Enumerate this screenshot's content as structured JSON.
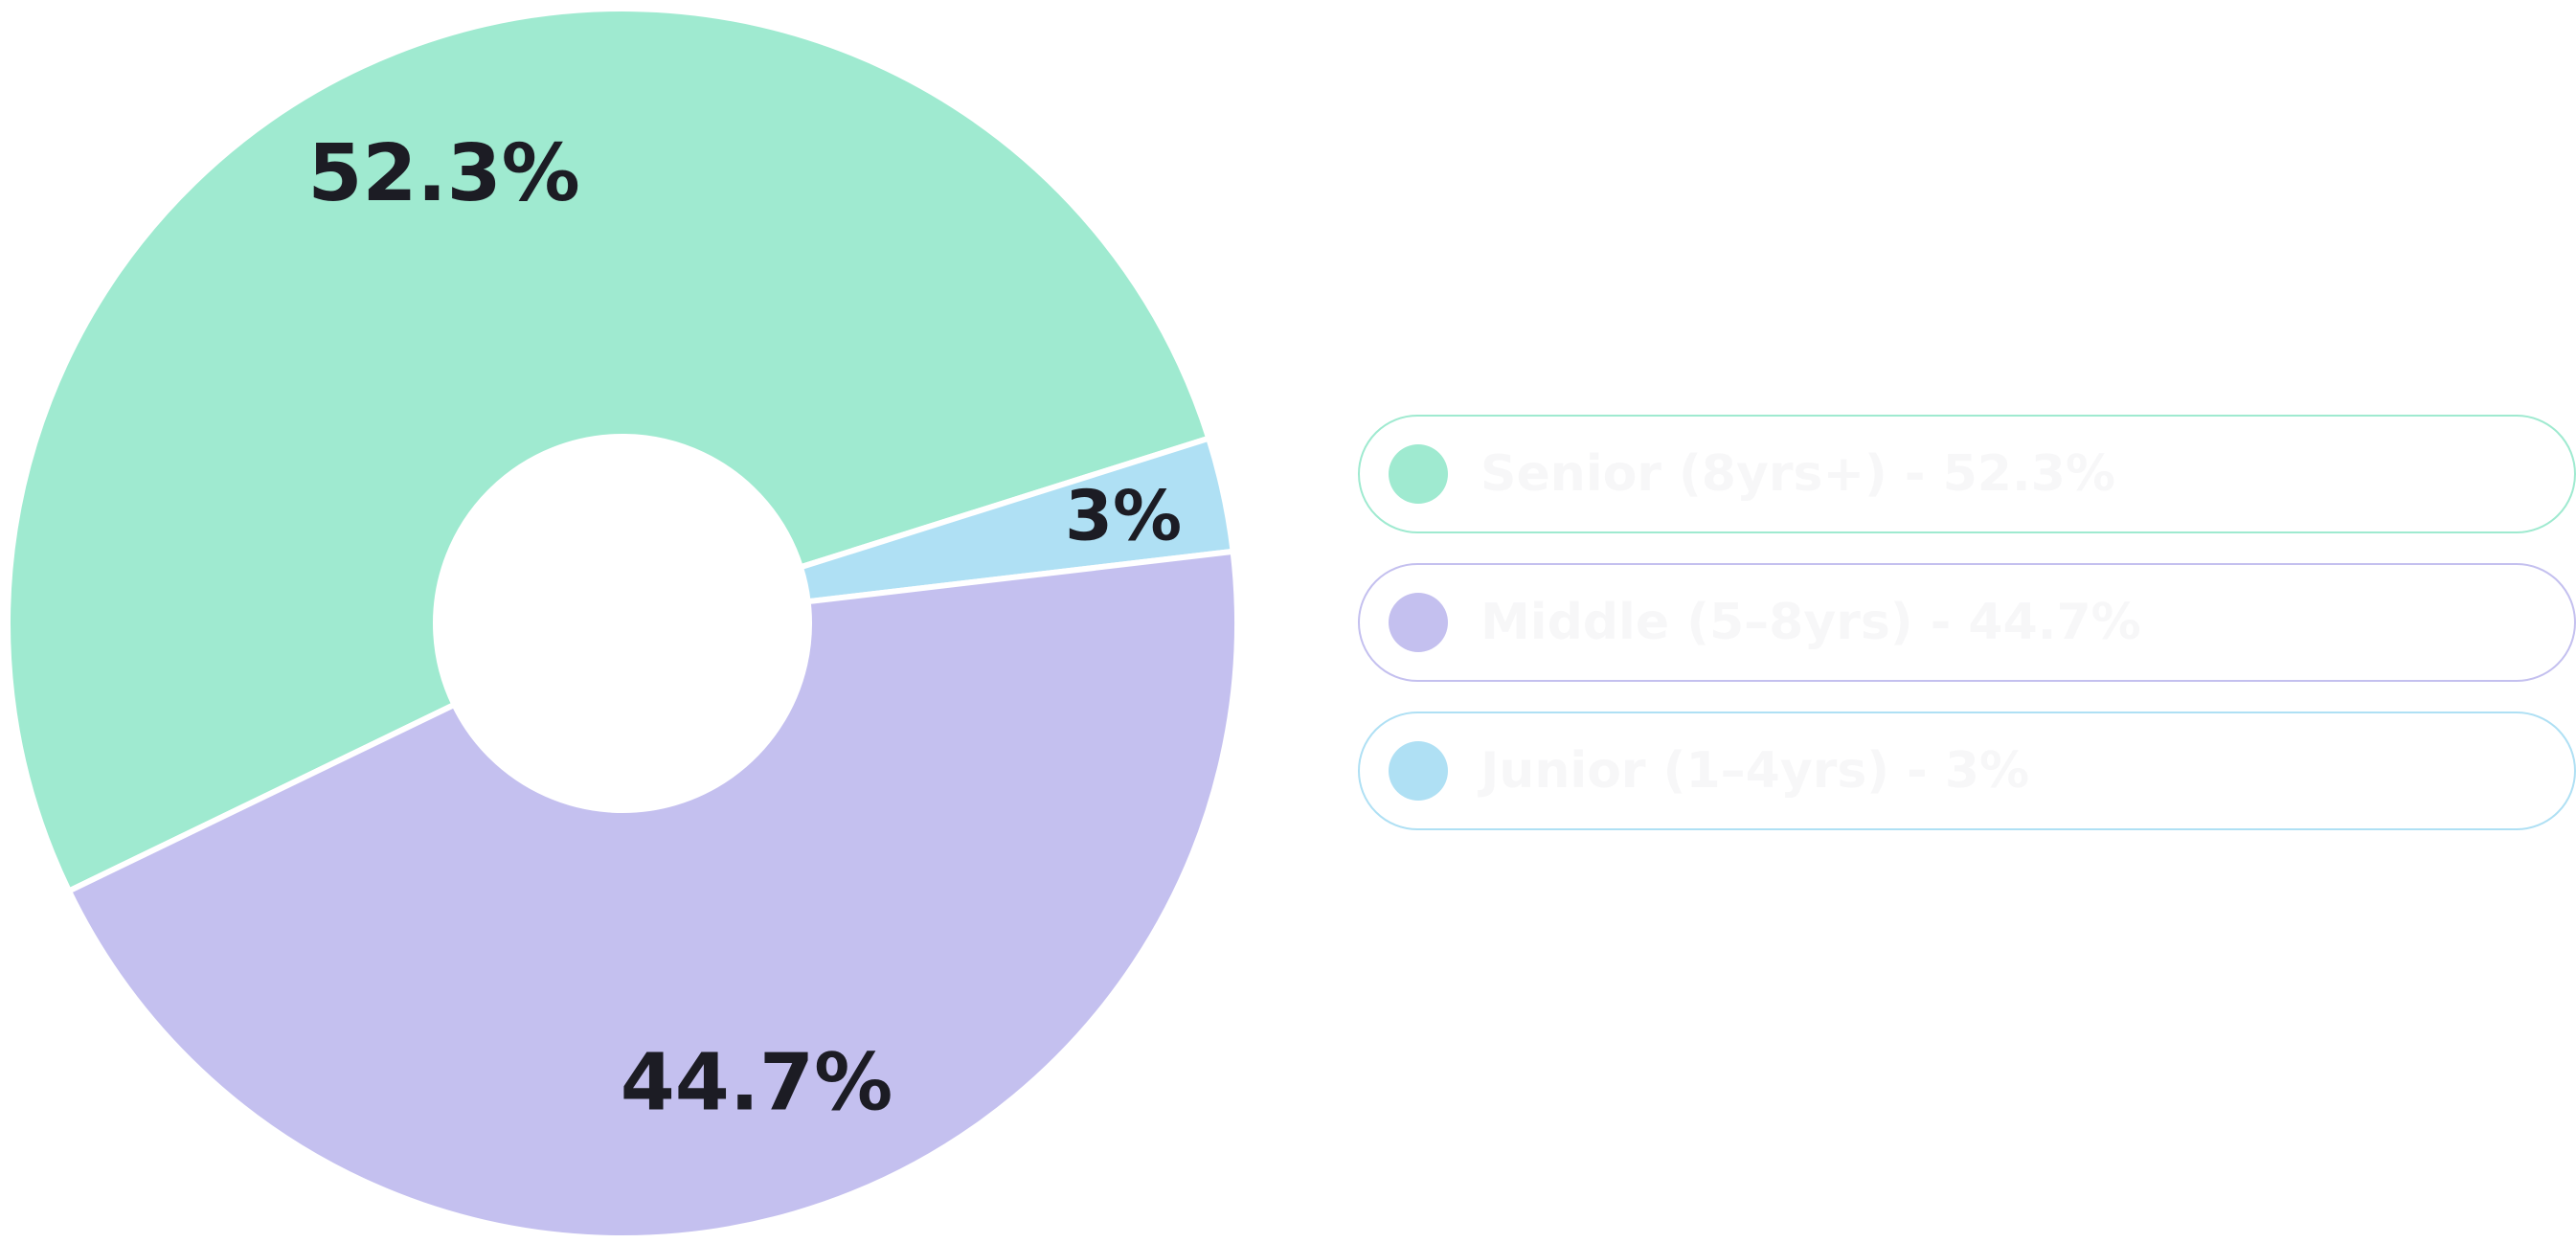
{
  "chart_data": {
    "type": "pie",
    "variant": "donut",
    "slices": [
      {
        "label": "Senior (8yrs+)",
        "value": 52.3,
        "value_label": "52.3%",
        "color": "#9fead0"
      },
      {
        "label": "Junior (1–4yrs)",
        "value": 3,
        "value_label": "3%",
        "color": "#afe0f4"
      },
      {
        "label": "Middle (5–8yrs)",
        "value": 44.7,
        "value_label": "44.7%",
        "color": "#c4c0ef"
      }
    ],
    "legend_placement": "right"
  },
  "legend": {
    "items": [
      {
        "text": "Senior (8yrs+) - 52.3%",
        "color": "#9fead0"
      },
      {
        "text": "Middle (5–8yrs) - 44.7%",
        "color": "#c4c0ef"
      },
      {
        "text": "Junior (1–4yrs) - 3%",
        "color": "#afe0f4"
      }
    ]
  }
}
